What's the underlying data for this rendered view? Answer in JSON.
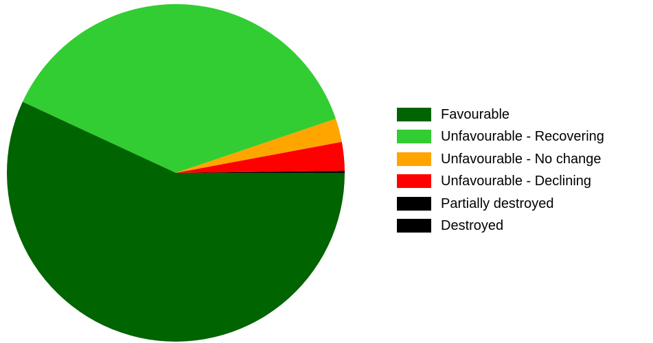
{
  "chart_data": {
    "type": "pie",
    "title": "",
    "slices": [
      {
        "label": "Favourable",
        "value": 58.0,
        "color": "#006400"
      },
      {
        "label": "Unfavourable - Recovering",
        "value": 38.6,
        "color": "#32CD32"
      },
      {
        "label": "Unfavourable - No change",
        "value": 2.3,
        "color": "#FFA500"
      },
      {
        "label": "Unfavourable - Declining",
        "value": 2.8,
        "color": "#FF0000"
      },
      {
        "label": "Partially destroyed",
        "value": 0.2,
        "color": "#000000"
      },
      {
        "label": "Destroyed",
        "value": 0.0,
        "color": "#000000"
      }
    ],
    "legend_position": "right"
  }
}
